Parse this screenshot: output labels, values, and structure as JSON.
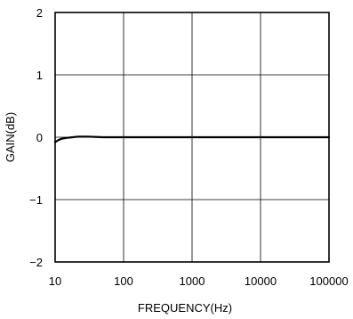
{
  "chart_data": {
    "type": "line",
    "title": "",
    "xlabel": "FREQUENCY(Hz)",
    "ylabel": "GAIN(dB)",
    "x_scale": "log",
    "xlim": [
      10,
      100000
    ],
    "ylim": [
      -2,
      2
    ],
    "x_ticks": [
      10,
      100,
      1000,
      10000,
      100000
    ],
    "x_tick_labels": [
      "10",
      "100",
      "1000",
      "10000",
      "100000"
    ],
    "y_ticks": [
      -2,
      -1,
      0,
      1,
      2
    ],
    "y_tick_labels": [
      "−2",
      "−1",
      "0",
      "1",
      "2"
    ],
    "grid": true,
    "line_color": "#000000",
    "series": [
      {
        "x": [
          10,
          11,
          12,
          13,
          15,
          18,
          22,
          30,
          50,
          100,
          1000,
          10000,
          100000
        ],
        "y": [
          -0.08,
          -0.05,
          -0.03,
          -0.02,
          -0.01,
          0.0,
          0.01,
          0.01,
          0.0,
          0.0,
          0.0,
          0.0,
          0.0
        ]
      }
    ]
  }
}
